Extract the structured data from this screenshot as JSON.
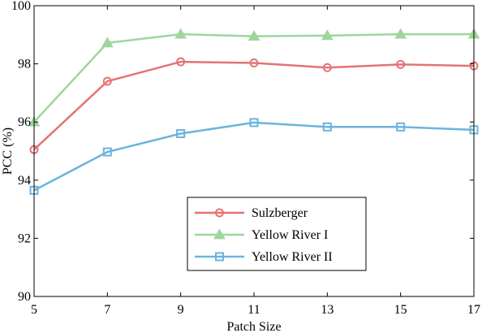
{
  "chart_data": {
    "type": "line",
    "title": "",
    "xlabel": "Patch Size",
    "ylabel": "PCC (%)",
    "x": [
      5,
      7,
      9,
      11,
      13,
      15,
      17
    ],
    "xlim": [
      5,
      17
    ],
    "ylim": [
      90,
      100
    ],
    "xticks": [
      "5",
      "7",
      "9",
      "11",
      "13",
      "15",
      "17"
    ],
    "yticks": [
      "90",
      "92",
      "94",
      "96",
      "98",
      "100"
    ],
    "grid": false,
    "legend_position": "lower-right",
    "series": [
      {
        "name": "Sulzberger",
        "marker": "circle",
        "color": "#e57373",
        "values": [
          95.05,
          97.4,
          98.07,
          98.03,
          97.87,
          97.98,
          97.93
        ]
      },
      {
        "name": "Yellow River I",
        "marker": "triangle",
        "color": "#9fd69c",
        "values": [
          96.0,
          98.72,
          99.02,
          98.95,
          98.97,
          99.02,
          99.02
        ]
      },
      {
        "name": "Yellow River II",
        "marker": "square",
        "color": "#6cb4dc",
        "values": [
          93.65,
          94.97,
          95.6,
          95.98,
          95.83,
          95.83,
          95.73
        ]
      }
    ]
  }
}
